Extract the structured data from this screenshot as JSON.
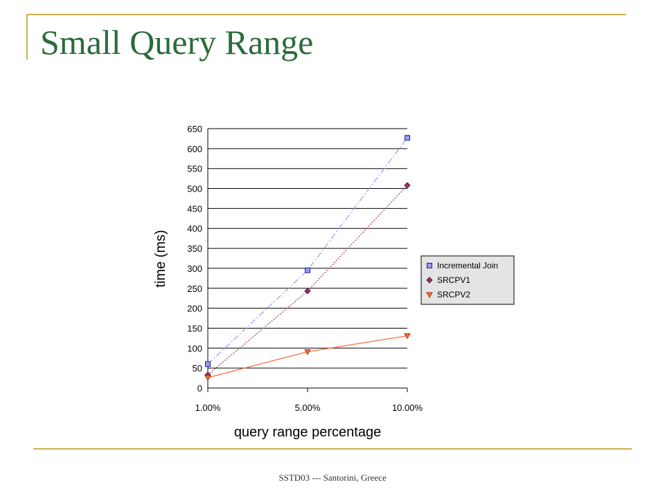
{
  "slide": {
    "title": "Small Query Range",
    "footer": "SSTD03 --- Santorini, Greece"
  },
  "chart_data": {
    "type": "line",
    "categories": [
      "1.00%",
      "5.00%",
      "10.00%"
    ],
    "series": [
      {
        "name": "Incremental Join",
        "values": [
          60,
          295,
          627
        ],
        "color": "#9999ff",
        "marker": "square",
        "line_style": "dash-dot"
      },
      {
        "name": "SRCPV1",
        "values": [
          33,
          243,
          508
        ],
        "color": "#993366",
        "marker": "diamond",
        "line_style": "dotted"
      },
      {
        "name": "SRCPV2",
        "values": [
          26,
          91,
          131
        ],
        "color": "#ff6633",
        "marker": "triangle-down",
        "line_style": "solid"
      }
    ],
    "xlabel": "query range percentage",
    "ylabel": "time (ms)",
    "ylim": [
      0,
      650
    ],
    "yticks": [
      0,
      50,
      100,
      150,
      200,
      250,
      300,
      350,
      400,
      450,
      500,
      550,
      600,
      650
    ],
    "grid": true,
    "legend_position": "right"
  }
}
